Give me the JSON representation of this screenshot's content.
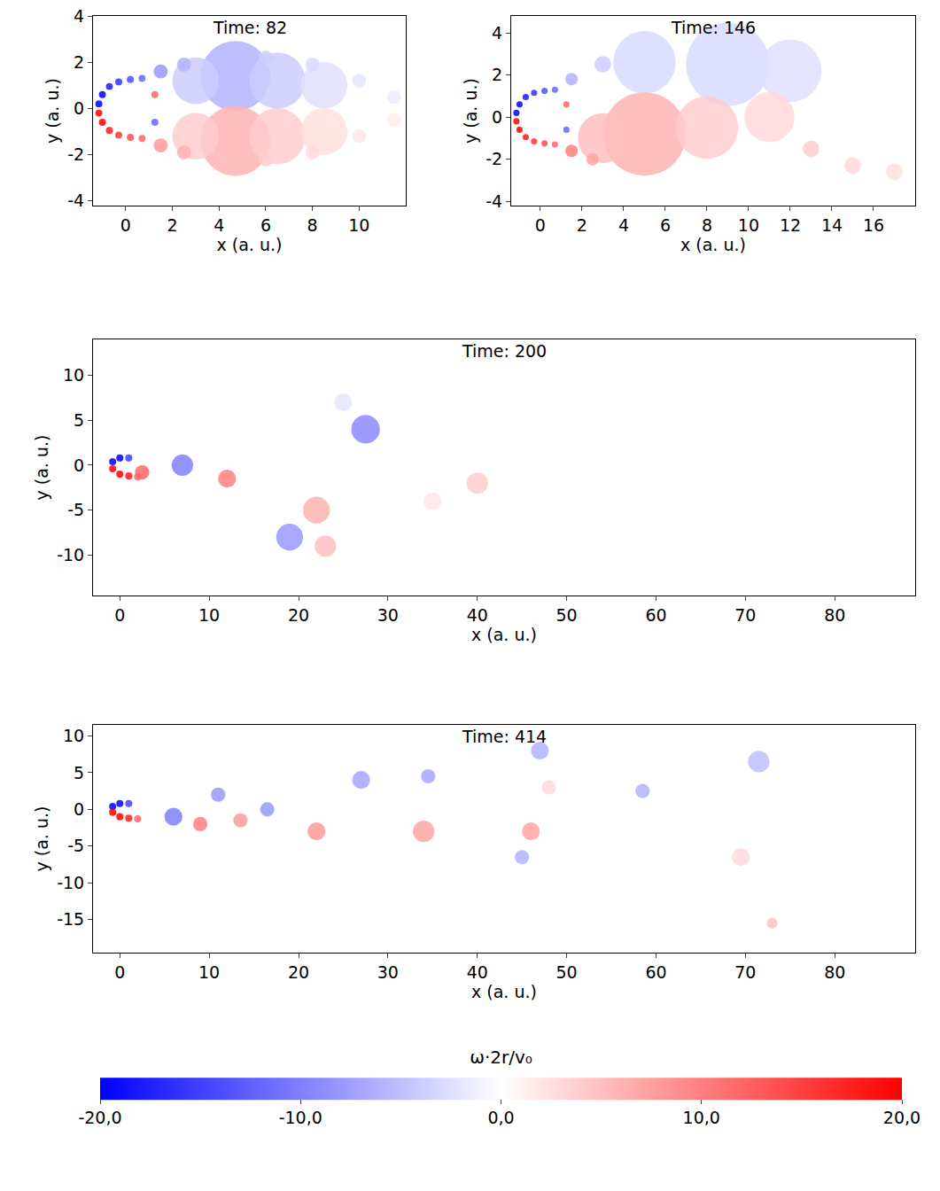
{
  "chart_data": [
    {
      "type": "scatter",
      "title": "Time: 82",
      "x_label": "x (a. u.)",
      "y_label": "y (a. u.)",
      "xlim": [
        -1.4,
        12
      ],
      "ylim": [
        -4.2,
        4
      ],
      "xticks": [
        0,
        2,
        4,
        6,
        8,
        10
      ],
      "yticks": [
        -4,
        -2,
        0,
        2,
        4
      ],
      "x": [
        4.7,
        3,
        6.5,
        8.5,
        4.7,
        3,
        6.5,
        8.5,
        1.5,
        2.5,
        4,
        6,
        8,
        10,
        11.5,
        1.5,
        2.5,
        4,
        6,
        8,
        10,
        11.5,
        -1.15,
        -1.0,
        -0.7,
        -0.3,
        0.2,
        0.7,
        -1.15,
        -1.0,
        -0.7,
        -0.3,
        0.2,
        0.7,
        1.25,
        1.25
      ],
      "y": [
        1.4,
        1.2,
        1.2,
        1.0,
        -1.4,
        -1.2,
        -1.2,
        -1.0,
        1.6,
        1.9,
        2.2,
        2.2,
        1.9,
        1.2,
        0.5,
        -1.6,
        -1.9,
        -2.2,
        -2.2,
        -1.9,
        -1.2,
        -0.5,
        0.2,
        0.6,
        0.95,
        1.15,
        1.25,
        1.3,
        -0.2,
        -0.6,
        -0.95,
        -1.15,
        -1.25,
        -1.3,
        0.6,
        -0.6
      ],
      "vorticity": [
        -6,
        -4,
        -4,
        -2.5,
        6,
        4,
        4,
        2.5,
        -8,
        -6,
        -5,
        -4,
        -3,
        -2,
        -1.5,
        8,
        6,
        5,
        4,
        3,
        2,
        1.5,
        -20,
        -20,
        -18,
        -16,
        -14,
        -12,
        20,
        20,
        18,
        16,
        14,
        12,
        12,
        -12
      ],
      "radius": [
        1.5,
        1.0,
        1.2,
        1.0,
        1.5,
        1.0,
        1.2,
        1.0,
        0.3,
        0.3,
        0.3,
        0.3,
        0.3,
        0.3,
        0.3,
        0.3,
        0.3,
        0.3,
        0.3,
        0.3,
        0.3,
        0.3,
        0.15,
        0.15,
        0.15,
        0.15,
        0.15,
        0.15,
        0.15,
        0.15,
        0.15,
        0.15,
        0.15,
        0.15,
        0.15,
        0.15
      ]
    },
    {
      "type": "scatter",
      "title": "Time: 146",
      "x_label": "x (a. u.)",
      "y_label": "y (a. u.)",
      "xlim": [
        -1.4,
        18
      ],
      "ylim": [
        -4.2,
        4.8
      ],
      "xticks": [
        0,
        2,
        4,
        6,
        8,
        10,
        12,
        14,
        16
      ],
      "yticks": [
        -4,
        -2,
        0,
        2,
        4
      ],
      "x": [
        9,
        5,
        12,
        5,
        8,
        11,
        3,
        1.5,
        3,
        13,
        15,
        17,
        1.5,
        2.5,
        -1.15,
        -1.0,
        -0.7,
        -0.3,
        0.2,
        0.7,
        -1.15,
        -1.0,
        -0.7,
        -0.3,
        0.2,
        0.7,
        1.25,
        1.25
      ],
      "y": [
        2.5,
        2.6,
        2.2,
        -0.8,
        -0.5,
        0,
        -1,
        1.8,
        2.5,
        -1.5,
        -2.3,
        -2.6,
        -1.6,
        -2,
        0.2,
        0.6,
        0.95,
        1.15,
        1.25,
        1.3,
        -0.2,
        -0.6,
        -0.95,
        -1.15,
        -1.25,
        -1.3,
        0.6,
        -0.6
      ],
      "vorticity": [
        -3,
        -3,
        -2.5,
        6,
        4,
        3,
        5,
        -6,
        -4,
        4,
        3,
        2.5,
        10,
        7,
        -20,
        -20,
        -18,
        -16,
        -14,
        -12,
        20,
        20,
        18,
        16,
        14,
        12,
        12,
        -12
      ],
      "radius": [
        2,
        1.5,
        1.5,
        2,
        1.5,
        1.2,
        1.2,
        0.3,
        0.4,
        0.4,
        0.4,
        0.4,
        0.3,
        0.3,
        0.15,
        0.15,
        0.15,
        0.15,
        0.15,
        0.15,
        0.15,
        0.15,
        0.15,
        0.15,
        0.15,
        0.15,
        0.15,
        0.15
      ]
    },
    {
      "type": "scatter",
      "title": "Time: 200",
      "x_label": "x (a. u.)",
      "y_label": "y (a. u.)",
      "xlim": [
        -3,
        89
      ],
      "ylim": [
        -14.5,
        14
      ],
      "xticks": [
        0,
        10,
        20,
        30,
        40,
        50,
        60,
        70,
        80
      ],
      "yticks": [
        -10,
        -5,
        0,
        5,
        10
      ],
      "x": [
        35,
        25,
        22,
        23,
        40,
        19,
        27.5,
        7,
        12,
        2.5,
        -0.8,
        0,
        1,
        -0.8,
        0,
        1,
        2
      ],
      "y": [
        -4,
        7,
        -5,
        -9,
        -2,
        -8,
        4,
        0,
        -1.5,
        -0.8,
        0.4,
        0.8,
        0.8,
        -0.4,
        -1,
        -1.2,
        -1.3
      ],
      "vorticity": [
        2,
        -2,
        6,
        5,
        4,
        -8,
        -9,
        -10,
        10,
        12,
        -20,
        -20,
        -15,
        20,
        20,
        18,
        12
      ],
      "radius": [
        1,
        1,
        1.5,
        1.2,
        1.2,
        1.5,
        1.6,
        1.2,
        1.0,
        0.8,
        0.4,
        0.4,
        0.4,
        0.4,
        0.4,
        0.4,
        0.4
      ]
    },
    {
      "type": "scatter",
      "title": "Time: 414",
      "x_label": "x (a. u.)",
      "y_label": "y (a. u.)",
      "xlim": [
        -3,
        89
      ],
      "ylim": [
        -19.5,
        11.5
      ],
      "xticks": [
        0,
        10,
        20,
        30,
        40,
        50,
        60,
        70,
        80
      ],
      "yticks": [
        -15,
        -10,
        -5,
        0,
        5,
        10
      ],
      "x": [
        71.5,
        69.5,
        48,
        34,
        22,
        46,
        47,
        27,
        6,
        11,
        9,
        13.5,
        16.5,
        34.5,
        45,
        58.5,
        73,
        -0.8,
        0,
        1,
        -0.8,
        0,
        1,
        2
      ],
      "y": [
        6.5,
        -6.5,
        3,
        -3,
        -3,
        -3,
        8,
        4,
        -1,
        2,
        -2,
        -1.5,
        0,
        4.5,
        -6.5,
        2.5,
        -15.5,
        0.4,
        0.8,
        0.8,
        -0.4,
        -1,
        -1.2,
        -1.3
      ],
      "vorticity": [
        -5,
        3,
        3,
        7,
        8,
        7,
        -6,
        -7,
        -10,
        -8,
        10,
        8,
        -8,
        -7,
        -6,
        -6,
        5,
        -20,
        -20,
        -15,
        20,
        20,
        18,
        12
      ],
      "radius": [
        1.2,
        1.0,
        0.8,
        1.2,
        1.0,
        1.0,
        1.0,
        1.0,
        1.0,
        0.8,
        0.8,
        0.8,
        0.8,
        0.8,
        0.8,
        0.8,
        0.6,
        0.4,
        0.4,
        0.4,
        0.4,
        0.4,
        0.4,
        0.4
      ]
    }
  ],
  "colorbar": {
    "title": "ω·2r/v₀",
    "range": [
      -20,
      20
    ],
    "ticks": [
      {
        "value": -20,
        "label": "-20,0"
      },
      {
        "value": -10,
        "label": "-10,0"
      },
      {
        "value": 0,
        "label": "0,0"
      },
      {
        "value": 10,
        "label": "10,0"
      },
      {
        "value": 20,
        "label": "20,0"
      }
    ]
  }
}
